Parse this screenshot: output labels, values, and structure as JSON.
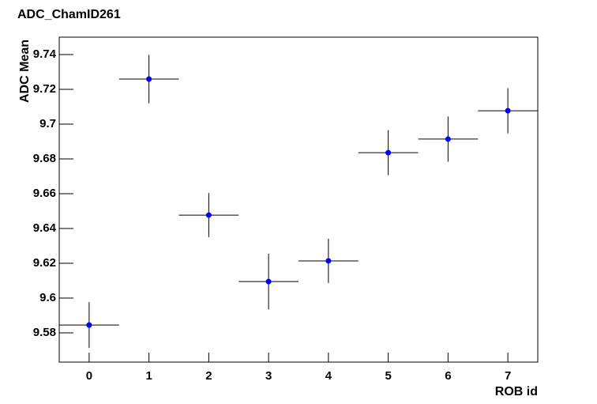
{
  "chart_data": {
    "type": "scatter",
    "title": "ADC_ChamID261",
    "x_label": "ROB id",
    "y_label": "ADC Mean",
    "x": [
      0,
      1,
      2,
      3,
      4,
      5,
      6,
      7
    ],
    "values": [
      9.5845,
      9.7259,
      9.6477,
      9.6095,
      9.6214,
      9.6836,
      9.6914,
      9.7077
    ],
    "errors": [
      0.0132,
      0.0139,
      0.0127,
      0.016,
      0.0127,
      0.013,
      0.013,
      0.013
    ],
    "xerr": 0.5,
    "color": "#0000ff",
    "xlim": [
      -0.5,
      7.5
    ],
    "ylim": [
      9.5632,
      9.75
    ],
    "xticks": [
      0,
      1,
      2,
      3,
      4,
      5,
      6,
      7
    ],
    "yticks": [
      9.58,
      9.6,
      9.62,
      9.64,
      9.66,
      9.68,
      9.7,
      9.72,
      9.74
    ]
  }
}
